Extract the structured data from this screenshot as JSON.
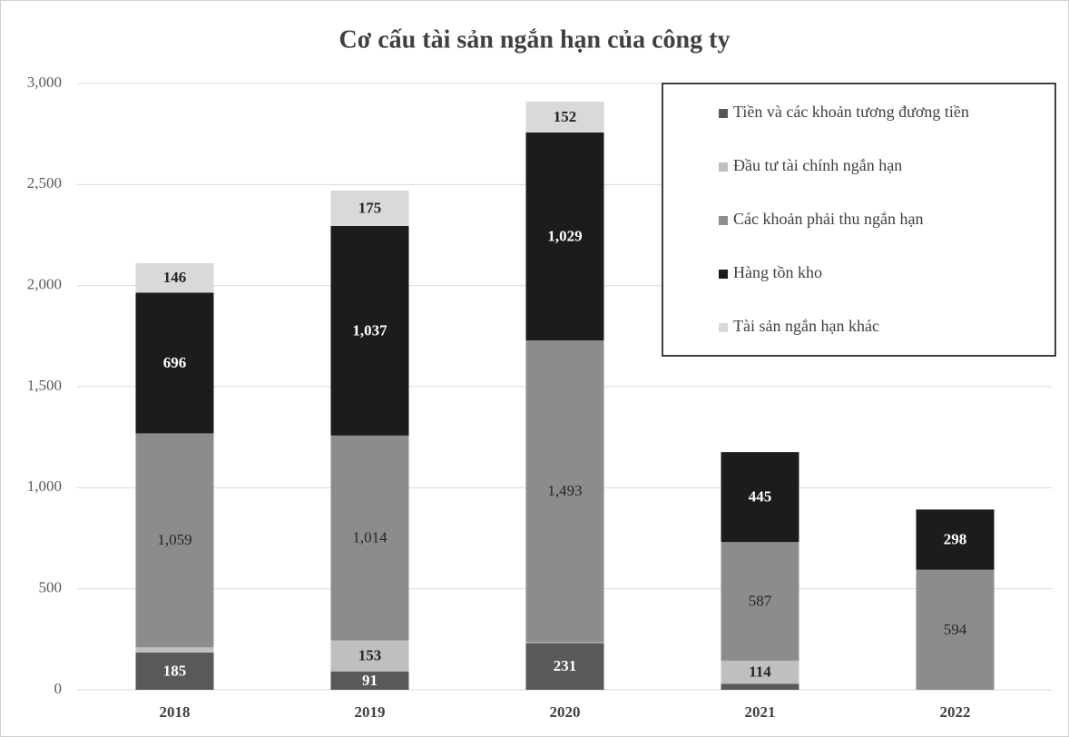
{
  "chart_data": {
    "type": "stacked_bar",
    "title": "Cơ cấu tài sản ngắn hạn của công ty",
    "categories": [
      "2018",
      "2019",
      "2020",
      "2021",
      "2022"
    ],
    "series": [
      {
        "name": "Tiền và các khoản tương đương tiền",
        "color": "#595959",
        "values": [
          185,
          91,
          231,
          30,
          0
        ],
        "value_labels": [
          "185",
          "91",
          "231",
          null,
          null
        ]
      },
      {
        "name": "Đầu tư tài chính ngắn hạn",
        "color": "#bfbfbf",
        "values": [
          25,
          153,
          5,
          114,
          0
        ],
        "value_labels": [
          null,
          "153",
          null,
          "114",
          null
        ]
      },
      {
        "name": "Các khoản phải thu ngắn hạn",
        "color": "#8c8c8c",
        "values": [
          1059,
          1014,
          1493,
          587,
          594
        ],
        "value_labels": [
          "1,059",
          "1,014",
          "1,493",
          "587",
          "594"
        ]
      },
      {
        "name": "Hàng tồn kho",
        "color": "#1c1c1c",
        "values": [
          696,
          1037,
          1029,
          445,
          298
        ],
        "value_labels": [
          "696",
          "1,037",
          "1,029",
          "445",
          "298"
        ]
      },
      {
        "name": "Tài sản ngắn hạn khác",
        "color": "#d9d9d9",
        "values": [
          146,
          175,
          152,
          0,
          0
        ],
        "value_labels": [
          "146",
          "175",
          "152",
          null,
          null
        ]
      }
    ],
    "ylim": [
      0,
      3000
    ],
    "yticks": [
      0,
      500,
      {
        "value": 1000,
        "label": "1,000"
      },
      {
        "value": 1500,
        "label": "1,500"
      },
      {
        "value": 2000,
        "label": "2,000"
      },
      {
        "value": 2500,
        "label": "2,500"
      },
      {
        "value": 3000,
        "label": "3,000"
      }
    ],
    "grid": true,
    "legend": "upper right"
  }
}
